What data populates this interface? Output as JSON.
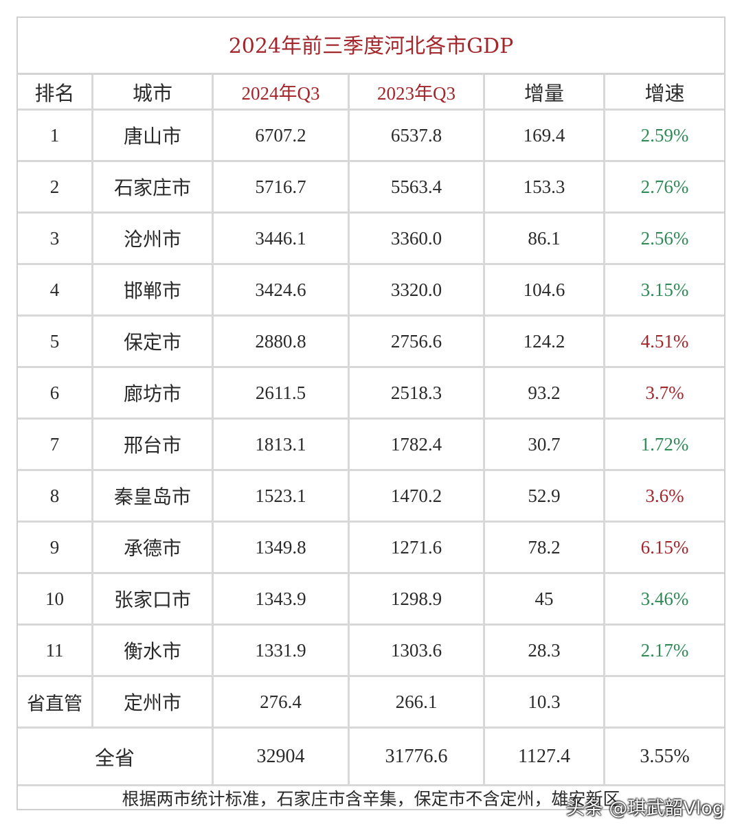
{
  "title": "2024年前三季度河北各市GDP",
  "headers": [
    "排名",
    "城市",
    "2024年Q3",
    "2023年Q3",
    "增量",
    "增速"
  ],
  "rows": [
    {
      "rank": "1",
      "city": "唐山市",
      "q3_2024": "6707.2",
      "q3_2023": "6537.8",
      "increase": "169.4",
      "growth": "2.59%",
      "growth_color": "green"
    },
    {
      "rank": "2",
      "city": "石家庄市",
      "q3_2024": "5716.7",
      "q3_2023": "5563.4",
      "increase": "153.3",
      "growth": "2.76%",
      "growth_color": "green"
    },
    {
      "rank": "3",
      "city": "沧州市",
      "q3_2024": "3446.1",
      "q3_2023": "3360.0",
      "increase": "86.1",
      "growth": "2.56%",
      "growth_color": "green"
    },
    {
      "rank": "4",
      "city": "邯郸市",
      "q3_2024": "3424.6",
      "q3_2023": "3320.0",
      "increase": "104.6",
      "growth": "3.15%",
      "growth_color": "green"
    },
    {
      "rank": "5",
      "city": "保定市",
      "q3_2024": "2880.8",
      "q3_2023": "2756.6",
      "increase": "124.2",
      "growth": "4.51%",
      "growth_color": "red"
    },
    {
      "rank": "6",
      "city": "廊坊市",
      "q3_2024": "2611.5",
      "q3_2023": "2518.3",
      "increase": "93.2",
      "growth": "3.7%",
      "growth_color": "red"
    },
    {
      "rank": "7",
      "city": "邢台市",
      "q3_2024": "1813.1",
      "q3_2023": "1782.4",
      "increase": "30.7",
      "growth": "1.72%",
      "growth_color": "green"
    },
    {
      "rank": "8",
      "city": "秦皇岛市",
      "q3_2024": "1523.1",
      "q3_2023": "1470.2",
      "increase": "52.9",
      "growth": "3.6%",
      "growth_color": "red"
    },
    {
      "rank": "9",
      "city": "承德市",
      "q3_2024": "1349.8",
      "q3_2023": "1271.6",
      "increase": "78.2",
      "growth": "6.15%",
      "growth_color": "red"
    },
    {
      "rank": "10",
      "city": "张家口市",
      "q3_2024": "1343.9",
      "q3_2023": "1298.9",
      "increase": "45",
      "growth": "3.46%",
      "growth_color": "green"
    },
    {
      "rank": "11",
      "city": "衡水市",
      "q3_2024": "1331.9",
      "q3_2023": "1303.6",
      "increase": "28.3",
      "growth": "2.17%",
      "growth_color": "green"
    },
    {
      "rank": "省直管",
      "city": "定州市",
      "q3_2024": "276.4",
      "q3_2023": "266.1",
      "increase": "10.3",
      "growth": "",
      "growth_color": "none"
    }
  ],
  "total": {
    "label": "全省",
    "q3_2024": "32904",
    "q3_2023": "31776.6",
    "increase": "1127.4",
    "growth": "3.55%"
  },
  "note": "根据两市统计标准，石家庄市含辛集，保定市不含定州，雄安新区",
  "watermark": "头条 @琪武韶Vlog",
  "colors": {
    "title_red": "#a3262b",
    "growth_green": "#2f8a57",
    "growth_red": "#a3262b",
    "grid": "#d8d8d8"
  }
}
